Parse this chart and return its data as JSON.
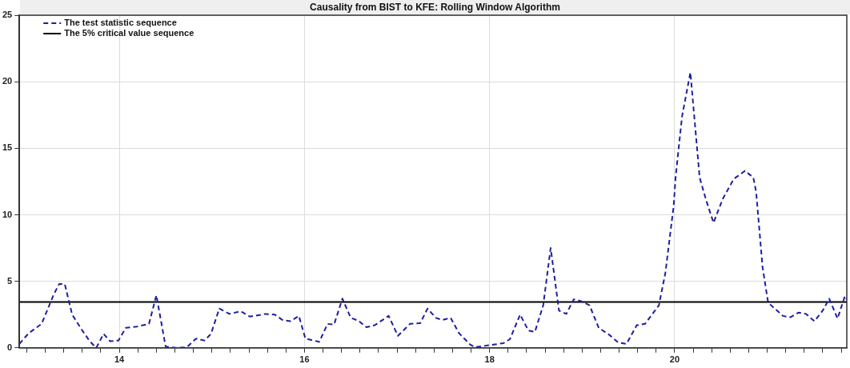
{
  "chart_data": {
    "type": "line",
    "title": "Causality from BIST to KFE: Rolling Window Algorithm",
    "xlim": [
      12.92,
      21.86
    ],
    "ylim": [
      0,
      25
    ],
    "xticks": [
      {
        "value": 13,
        "label": null
      },
      {
        "value": 13.2,
        "label": null
      },
      {
        "value": 13.4,
        "label": null
      },
      {
        "value": 13.6,
        "label": null
      },
      {
        "value": 13.8,
        "label": null
      },
      14,
      {
        "value": 14.2,
        "label": null
      },
      {
        "value": 14.4,
        "label": null
      },
      {
        "value": 14.6,
        "label": null
      },
      {
        "value": 14.8,
        "label": null
      },
      {
        "value": 15,
        "label": null
      },
      {
        "value": 15.2,
        "label": null
      },
      {
        "value": 15.4,
        "label": null
      },
      {
        "value": 15.6,
        "label": null
      },
      {
        "value": 15.8,
        "label": null
      },
      16,
      {
        "value": 16.2,
        "label": null
      },
      {
        "value": 16.4,
        "label": null
      },
      {
        "value": 16.6,
        "label": null
      },
      {
        "value": 16.8,
        "label": null
      },
      {
        "value": 17,
        "label": null
      },
      {
        "value": 17.2,
        "label": null
      },
      {
        "value": 17.4,
        "label": null
      },
      {
        "value": 17.6,
        "label": null
      },
      {
        "value": 17.8,
        "label": null
      },
      18,
      {
        "value": 18.2,
        "label": null
      },
      {
        "value": 18.4,
        "label": null
      },
      {
        "value": 18.6,
        "label": null
      },
      {
        "value": 18.8,
        "label": null
      },
      {
        "value": 19,
        "label": null
      },
      {
        "value": 19.2,
        "label": null
      },
      {
        "value": 19.4,
        "label": null
      },
      {
        "value": 19.6,
        "label": null
      },
      {
        "value": 19.8,
        "label": null
      },
      20,
      {
        "value": 20.2,
        "label": null
      },
      {
        "value": 20.4,
        "label": null
      },
      {
        "value": 20.6,
        "label": null
      },
      {
        "value": 20.8,
        "label": null
      },
      {
        "value": 21,
        "label": null
      },
      {
        "value": 21.2,
        "label": null
      },
      {
        "value": 21.4,
        "label": null
      },
      {
        "value": 21.6,
        "label": null
      },
      {
        "value": 21.8,
        "label": null
      }
    ],
    "yticks": [
      0,
      5,
      10,
      15,
      20,
      25
    ],
    "grid": true,
    "legend": "top left",
    "marker": "none",
    "series": [
      {
        "name": "The test statistic sequence",
        "color": "#1f1f9e",
        "line_style": "dashed",
        "x": [
          12.92,
          13.02,
          13.16,
          13.29,
          13.35,
          13.41,
          13.49,
          13.59,
          13.68,
          13.75,
          13.83,
          13.9,
          13.99,
          14.07,
          14.19,
          14.32,
          14.4,
          14.5,
          14.61,
          14.73,
          14.83,
          14.92,
          14.99,
          15.08,
          15.19,
          15.31,
          15.41,
          15.58,
          15.68,
          15.76,
          15.85,
          15.94,
          16.01,
          16.16,
          16.25,
          16.32,
          16.41,
          16.5,
          16.58,
          16.67,
          16.76,
          16.91,
          17.01,
          17.14,
          17.25,
          17.33,
          17.42,
          17.49,
          17.58,
          17.67,
          17.79,
          17.84,
          18.0,
          18.15,
          18.22,
          18.33,
          18.42,
          18.49,
          18.58,
          18.66,
          18.67,
          18.75,
          18.83,
          18.91,
          18.99,
          19.08,
          19.18,
          19.29,
          19.39,
          19.48,
          19.59,
          19.68,
          19.83,
          19.9,
          19.99,
          20.01,
          20.08,
          20.17,
          20.27,
          20.34,
          20.42,
          20.52,
          20.64,
          20.76,
          20.85,
          20.88,
          20.95,
          21.01,
          21.17,
          21.25,
          21.34,
          21.42,
          21.51,
          21.6,
          21.67,
          21.76,
          21.84,
          21.86
        ],
        "values": [
          0.3,
          1.1,
          1.8,
          4.0,
          4.8,
          4.8,
          2.5,
          1.4,
          0.5,
          0.0,
          1.05,
          0.5,
          0.55,
          1.5,
          1.6,
          1.8,
          3.95,
          0.1,
          0.0,
          0.05,
          0.7,
          0.55,
          1.05,
          2.95,
          2.55,
          2.75,
          2.35,
          2.55,
          2.5,
          2.1,
          2.0,
          2.4,
          0.7,
          0.45,
          1.8,
          1.75,
          3.7,
          2.25,
          2.05,
          1.55,
          1.7,
          2.4,
          0.9,
          1.8,
          1.85,
          2.95,
          2.25,
          2.1,
          2.25,
          1.1,
          0.25,
          0.05,
          0.2,
          0.35,
          0.65,
          2.5,
          1.3,
          1.2,
          3.2,
          7.5,
          7.0,
          2.8,
          2.55,
          3.65,
          3.5,
          3.2,
          1.5,
          1.0,
          0.4,
          0.3,
          1.7,
          1.8,
          3.2,
          5.65,
          10.7,
          12.8,
          17.4,
          20.7,
          12.8,
          11.1,
          9.4,
          11.2,
          12.7,
          13.3,
          12.8,
          11.75,
          6.05,
          3.4,
          2.4,
          2.3,
          2.65,
          2.55,
          2.0,
          2.8,
          3.7,
          2.2,
          3.9,
          3.65
        ]
      },
      {
        "name": "The 5% critical value sequence",
        "color": "#000000",
        "line_style": "solid",
        "x": [
          12.92,
          21.86
        ],
        "values": [
          3.45,
          3.45
        ]
      }
    ]
  }
}
